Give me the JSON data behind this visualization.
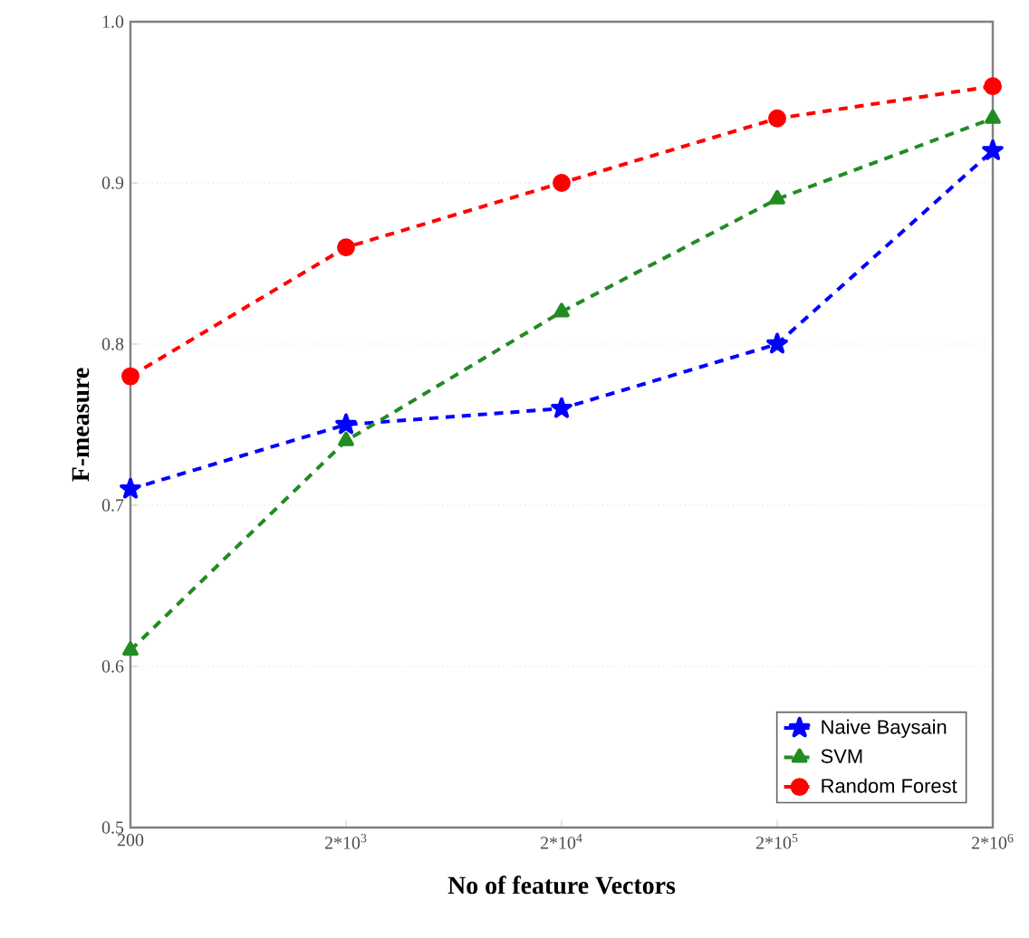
{
  "chart_data": {
    "type": "line",
    "xlabel": "No of feature Vectors",
    "ylabel": "F-measure",
    "categories": [
      "200",
      "2*10$^{3}$",
      "2*10$^{4}$",
      "2*10$^{5}$",
      "2*10$^{6}$"
    ],
    "series": [
      {
        "name": "Naive Baysain",
        "color": "#0000ff",
        "marker": "star",
        "values": [
          0.71,
          0.75,
          0.76,
          0.8,
          0.92
        ]
      },
      {
        "name": "SVM",
        "color": "#228b22",
        "marker": "triangle",
        "values": [
          0.61,
          0.74,
          0.82,
          0.89,
          0.94
        ]
      },
      {
        "name": "Random Forest",
        "color": "#ff0000",
        "marker": "circle",
        "values": [
          0.78,
          0.86,
          0.9,
          0.94,
          0.96
        ]
      }
    ],
    "ylim": [
      0.5,
      1.0
    ],
    "yticks": [
      0.5,
      0.6,
      0.7,
      0.8,
      0.9,
      {
        "value": 1.0,
        "label": "1.0"
      }
    ],
    "grid": "y",
    "legend": "bottom right",
    "line_style": "dashed"
  }
}
